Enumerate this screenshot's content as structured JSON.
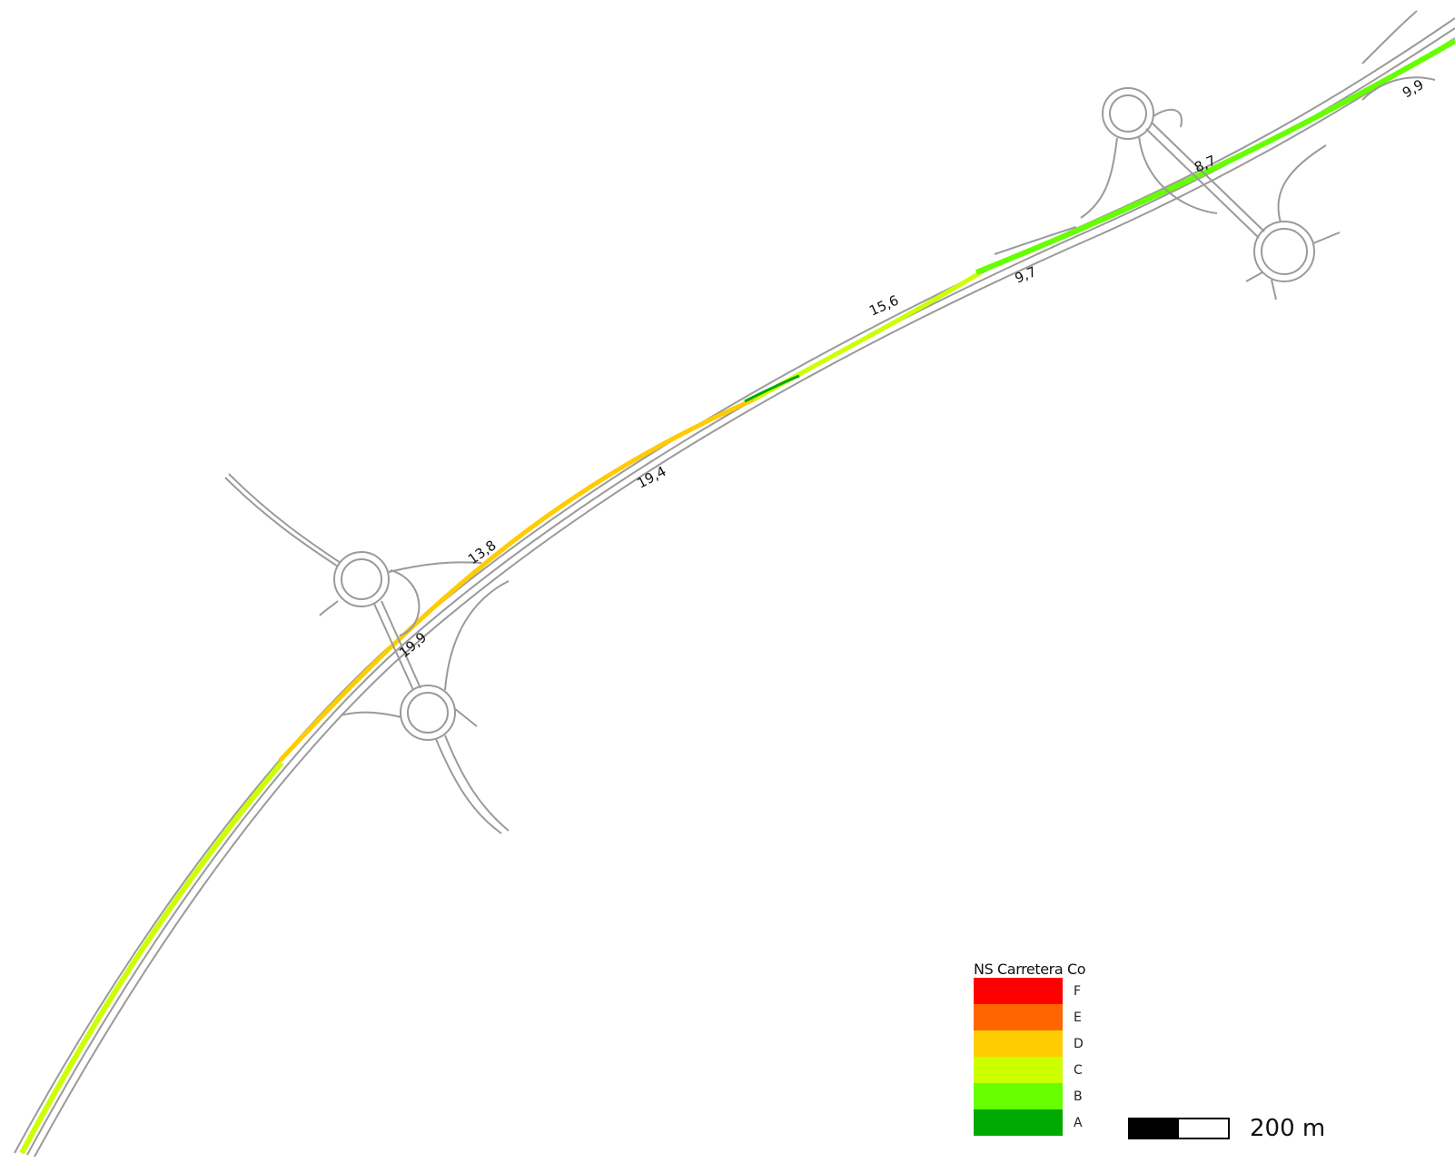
{
  "map": {
    "segment_labels": [
      {
        "text": "19,9"
      },
      {
        "text": "13,8"
      },
      {
        "text": "19,4"
      },
      {
        "text": "15,6"
      },
      {
        "text": "9,7"
      },
      {
        "text": "8,7"
      },
      {
        "text": "9,9"
      }
    ]
  },
  "legend": {
    "title": "NS Carretera Co",
    "items": [
      {
        "label": "F",
        "color": "#ff0000"
      },
      {
        "label": "E",
        "color": "#ff6600"
      },
      {
        "label": "D",
        "color": "#ffcc00"
      },
      {
        "label": "C",
        "color": "#ccff00"
      },
      {
        "label": "B",
        "color": "#66ff00"
      },
      {
        "label": "A",
        "color": "#00aa00"
      }
    ]
  },
  "scalebar": {
    "label": "200 m"
  },
  "colors": {
    "road": "#9a9a9a",
    "level_c": "#ccff00",
    "level_b": "#66ff00",
    "level_d": "#ffcc00",
    "level_a": "#00aa00"
  }
}
